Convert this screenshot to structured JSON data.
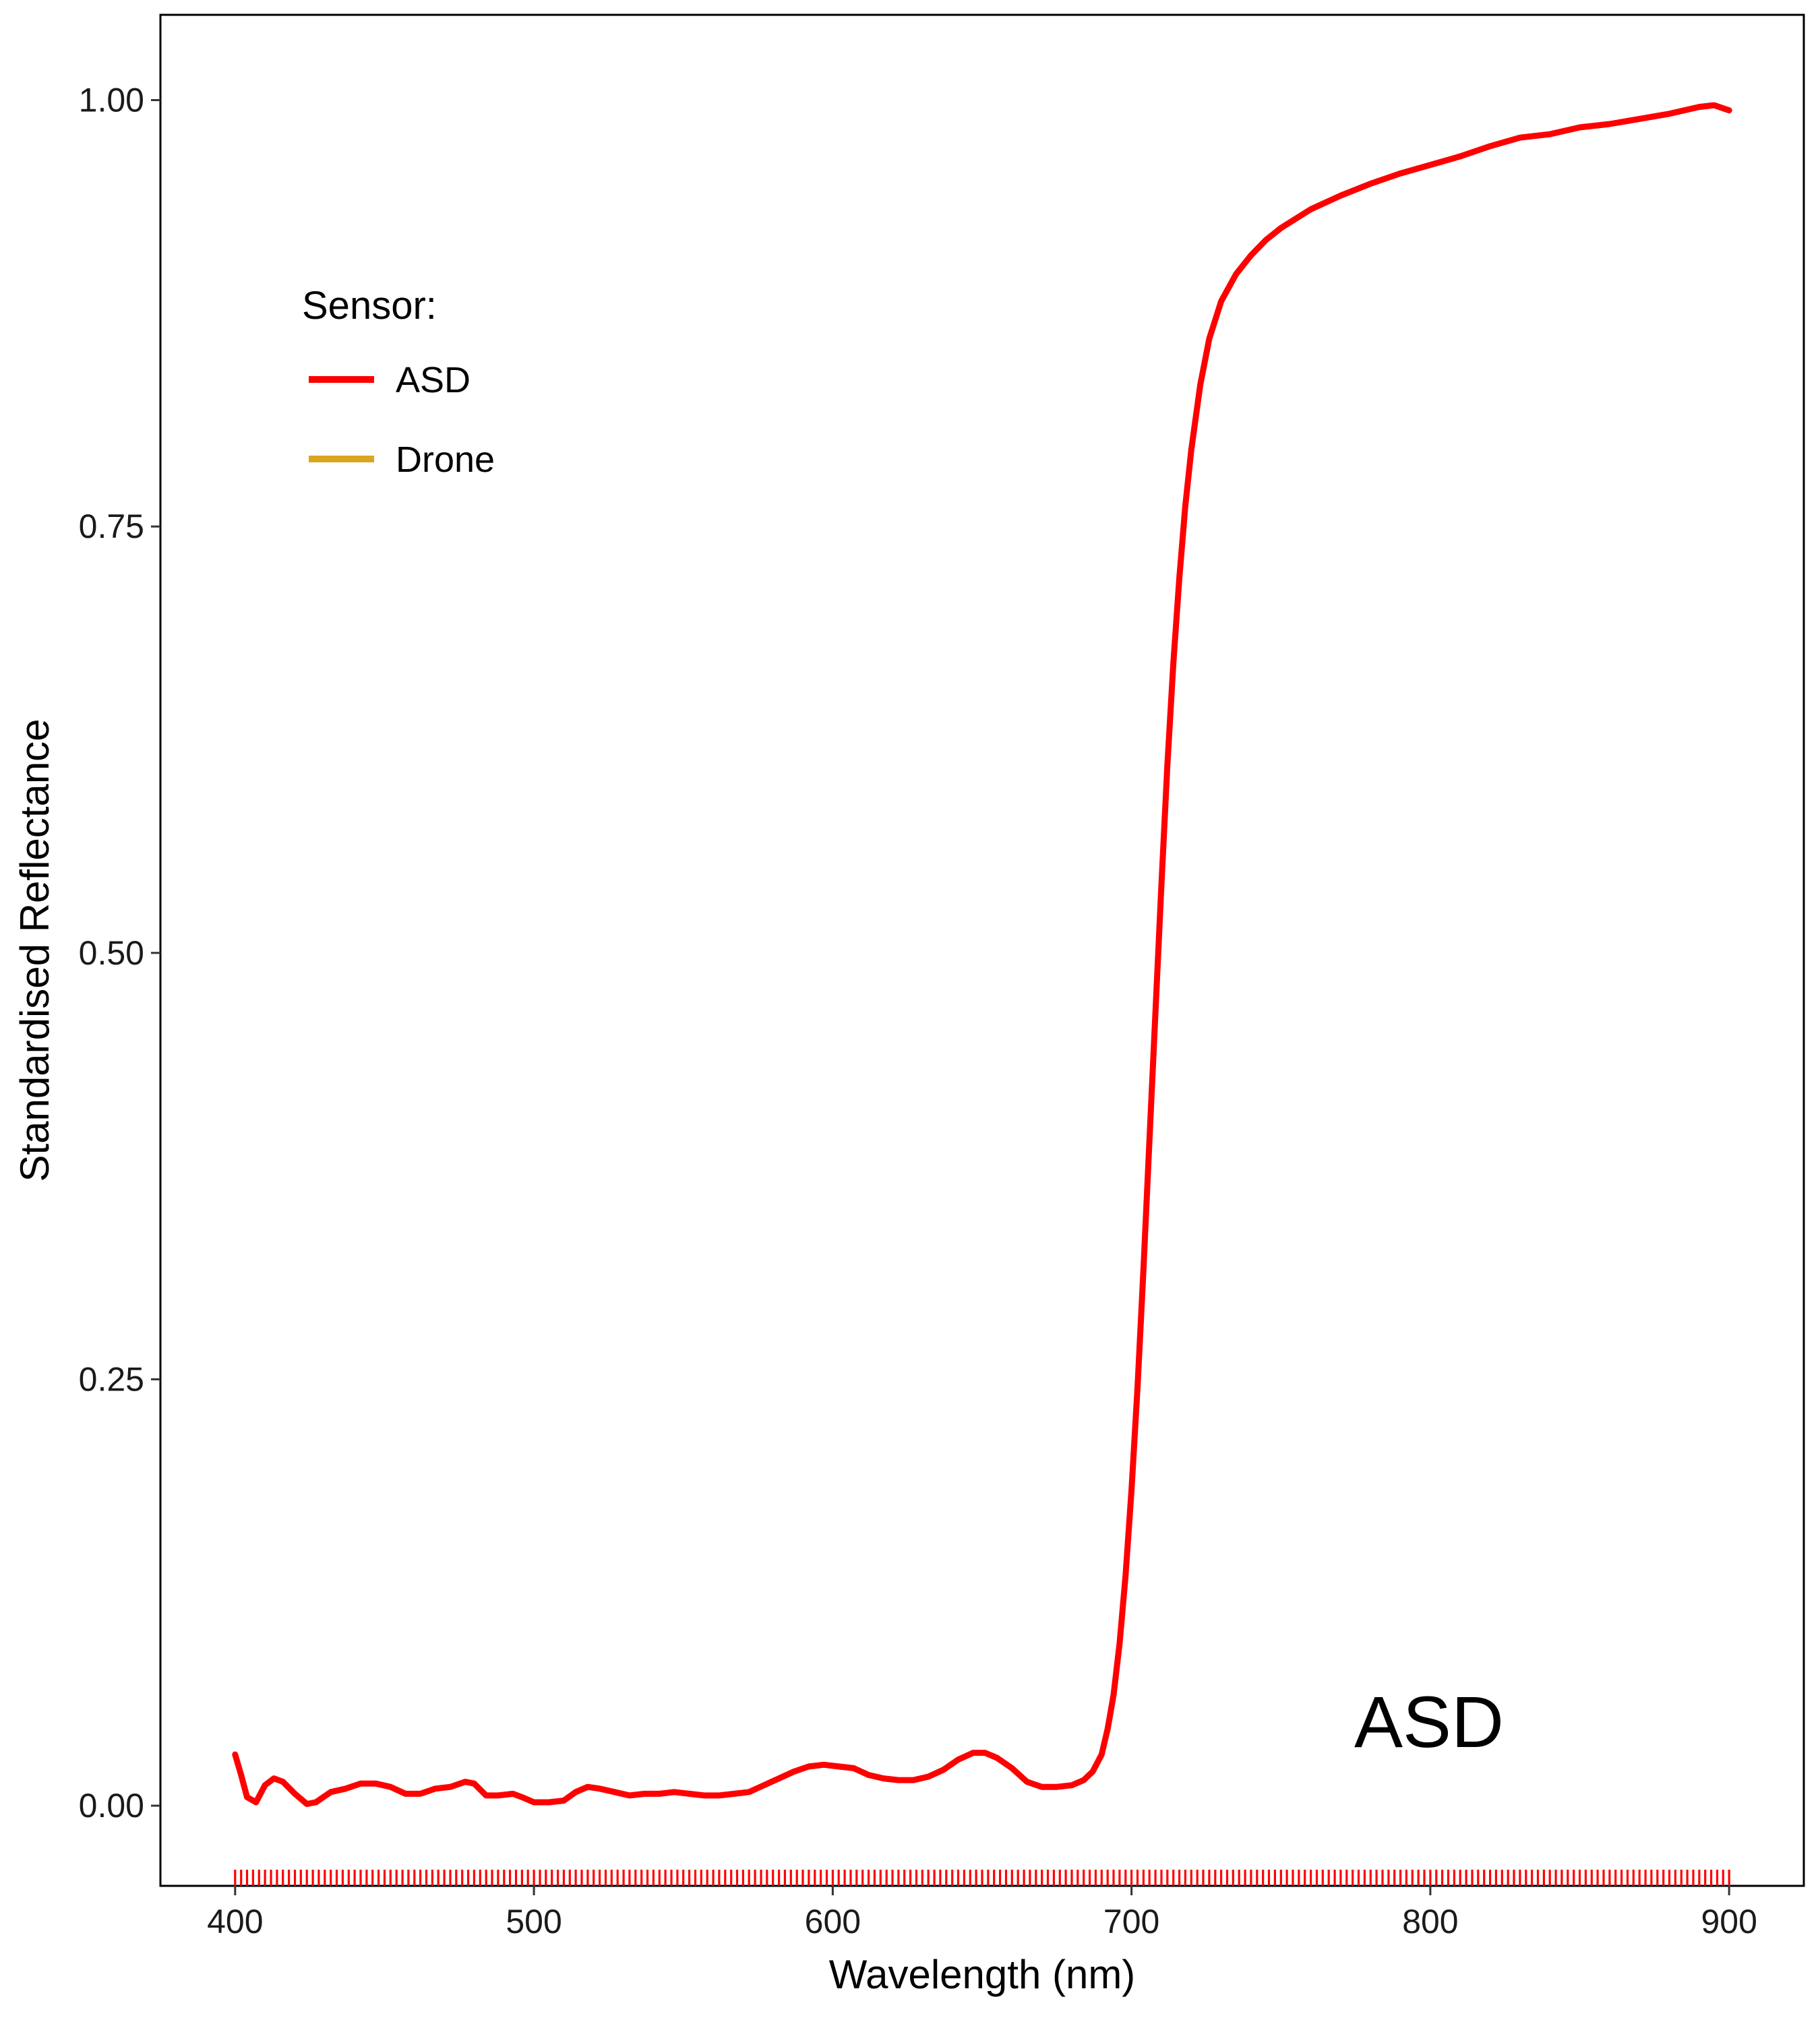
{
  "chart_data": {
    "type": "line",
    "xlabel": "Wavelength (nm)",
    "ylabel": "Standardised Reflectance",
    "xlim": [
      375,
      925
    ],
    "ylim": [
      -0.047,
      1.05
    ],
    "x_ticks": [
      400,
      500,
      600,
      700,
      800,
      900
    ],
    "y_ticks": [
      0.0,
      0.25,
      0.5,
      0.75,
      1.0
    ],
    "y_tick_labels": [
      "0.00",
      "0.25",
      "0.50",
      "0.75",
      "1.00"
    ],
    "grid": false,
    "legend": {
      "title": "Sensor:",
      "placement": "top-left",
      "entries": [
        {
          "name": "ASD",
          "color": "#ff0000"
        },
        {
          "name": "Drone",
          "color": "#daa520"
        }
      ]
    },
    "annotation": "ASD",
    "rug": {
      "color": "#ff0000",
      "from": 400,
      "to": 900,
      "step": 2
    },
    "series": [
      {
        "name": "ASD",
        "color": "#ff0000",
        "points": [
          [
            400,
            0.03
          ],
          [
            402,
            0.018
          ],
          [
            404,
            0.005
          ],
          [
            407,
            0.002
          ],
          [
            410,
            0.012
          ],
          [
            413,
            0.016
          ],
          [
            416,
            0.014
          ],
          [
            420,
            0.007
          ],
          [
            424,
            0.001
          ],
          [
            427,
            0.002
          ],
          [
            432,
            0.008
          ],
          [
            437,
            0.01
          ],
          [
            442,
            0.013
          ],
          [
            447,
            0.013
          ],
          [
            452,
            0.011
          ],
          [
            457,
            0.007
          ],
          [
            462,
            0.007
          ],
          [
            467,
            0.01
          ],
          [
            472,
            0.011
          ],
          [
            477,
            0.014
          ],
          [
            480,
            0.013
          ],
          [
            484,
            0.006
          ],
          [
            488,
            0.006
          ],
          [
            493,
            0.007
          ],
          [
            496,
            0.005
          ],
          [
            500,
            0.002
          ],
          [
            505,
            0.002
          ],
          [
            510,
            0.003
          ],
          [
            514,
            0.008
          ],
          [
            518,
            0.011
          ],
          [
            522,
            0.01
          ],
          [
            527,
            0.008
          ],
          [
            532,
            0.006
          ],
          [
            537,
            0.007
          ],
          [
            542,
            0.007
          ],
          [
            547,
            0.008
          ],
          [
            552,
            0.007
          ],
          [
            557,
            0.006
          ],
          [
            562,
            0.006
          ],
          [
            567,
            0.007
          ],
          [
            572,
            0.008
          ],
          [
            577,
            0.012
          ],
          [
            582,
            0.016
          ],
          [
            587,
            0.02
          ],
          [
            592,
            0.023
          ],
          [
            597,
            0.024
          ],
          [
            602,
            0.023
          ],
          [
            607,
            0.022
          ],
          [
            612,
            0.018
          ],
          [
            617,
            0.016
          ],
          [
            622,
            0.015
          ],
          [
            627,
            0.015
          ],
          [
            632,
            0.017
          ],
          [
            637,
            0.021
          ],
          [
            642,
            0.027
          ],
          [
            647,
            0.031
          ],
          [
            651,
            0.031
          ],
          [
            655,
            0.028
          ],
          [
            660,
            0.022
          ],
          [
            665,
            0.014
          ],
          [
            670,
            0.011
          ],
          [
            675,
            0.011
          ],
          [
            680,
            0.012
          ],
          [
            684,
            0.015
          ],
          [
            687,
            0.02
          ],
          [
            690,
            0.03
          ],
          [
            692,
            0.045
          ],
          [
            694,
            0.065
          ],
          [
            696,
            0.095
          ],
          [
            698,
            0.135
          ],
          [
            700,
            0.185
          ],
          [
            702,
            0.245
          ],
          [
            704,
            0.315
          ],
          [
            706,
            0.39
          ],
          [
            708,
            0.465
          ],
          [
            710,
            0.54
          ],
          [
            712,
            0.61
          ],
          [
            714,
            0.67
          ],
          [
            716,
            0.72
          ],
          [
            718,
            0.762
          ],
          [
            720,
            0.795
          ],
          [
            723,
            0.833
          ],
          [
            726,
            0.86
          ],
          [
            730,
            0.882
          ],
          [
            735,
            0.898
          ],
          [
            740,
            0.909
          ],
          [
            745,
            0.918
          ],
          [
            750,
            0.925
          ],
          [
            760,
            0.936
          ],
          [
            770,
            0.944
          ],
          [
            780,
            0.951
          ],
          [
            790,
            0.957
          ],
          [
            800,
            0.962
          ],
          [
            810,
            0.967
          ],
          [
            820,
            0.973
          ],
          [
            830,
            0.978
          ],
          [
            840,
            0.98
          ],
          [
            850,
            0.984
          ],
          [
            860,
            0.986
          ],
          [
            870,
            0.989
          ],
          [
            880,
            0.992
          ],
          [
            890,
            0.996
          ],
          [
            895,
            0.997
          ],
          [
            900,
            0.994
          ]
        ]
      },
      {
        "name": "Drone",
        "color": "#daa520",
        "points": []
      }
    ]
  }
}
